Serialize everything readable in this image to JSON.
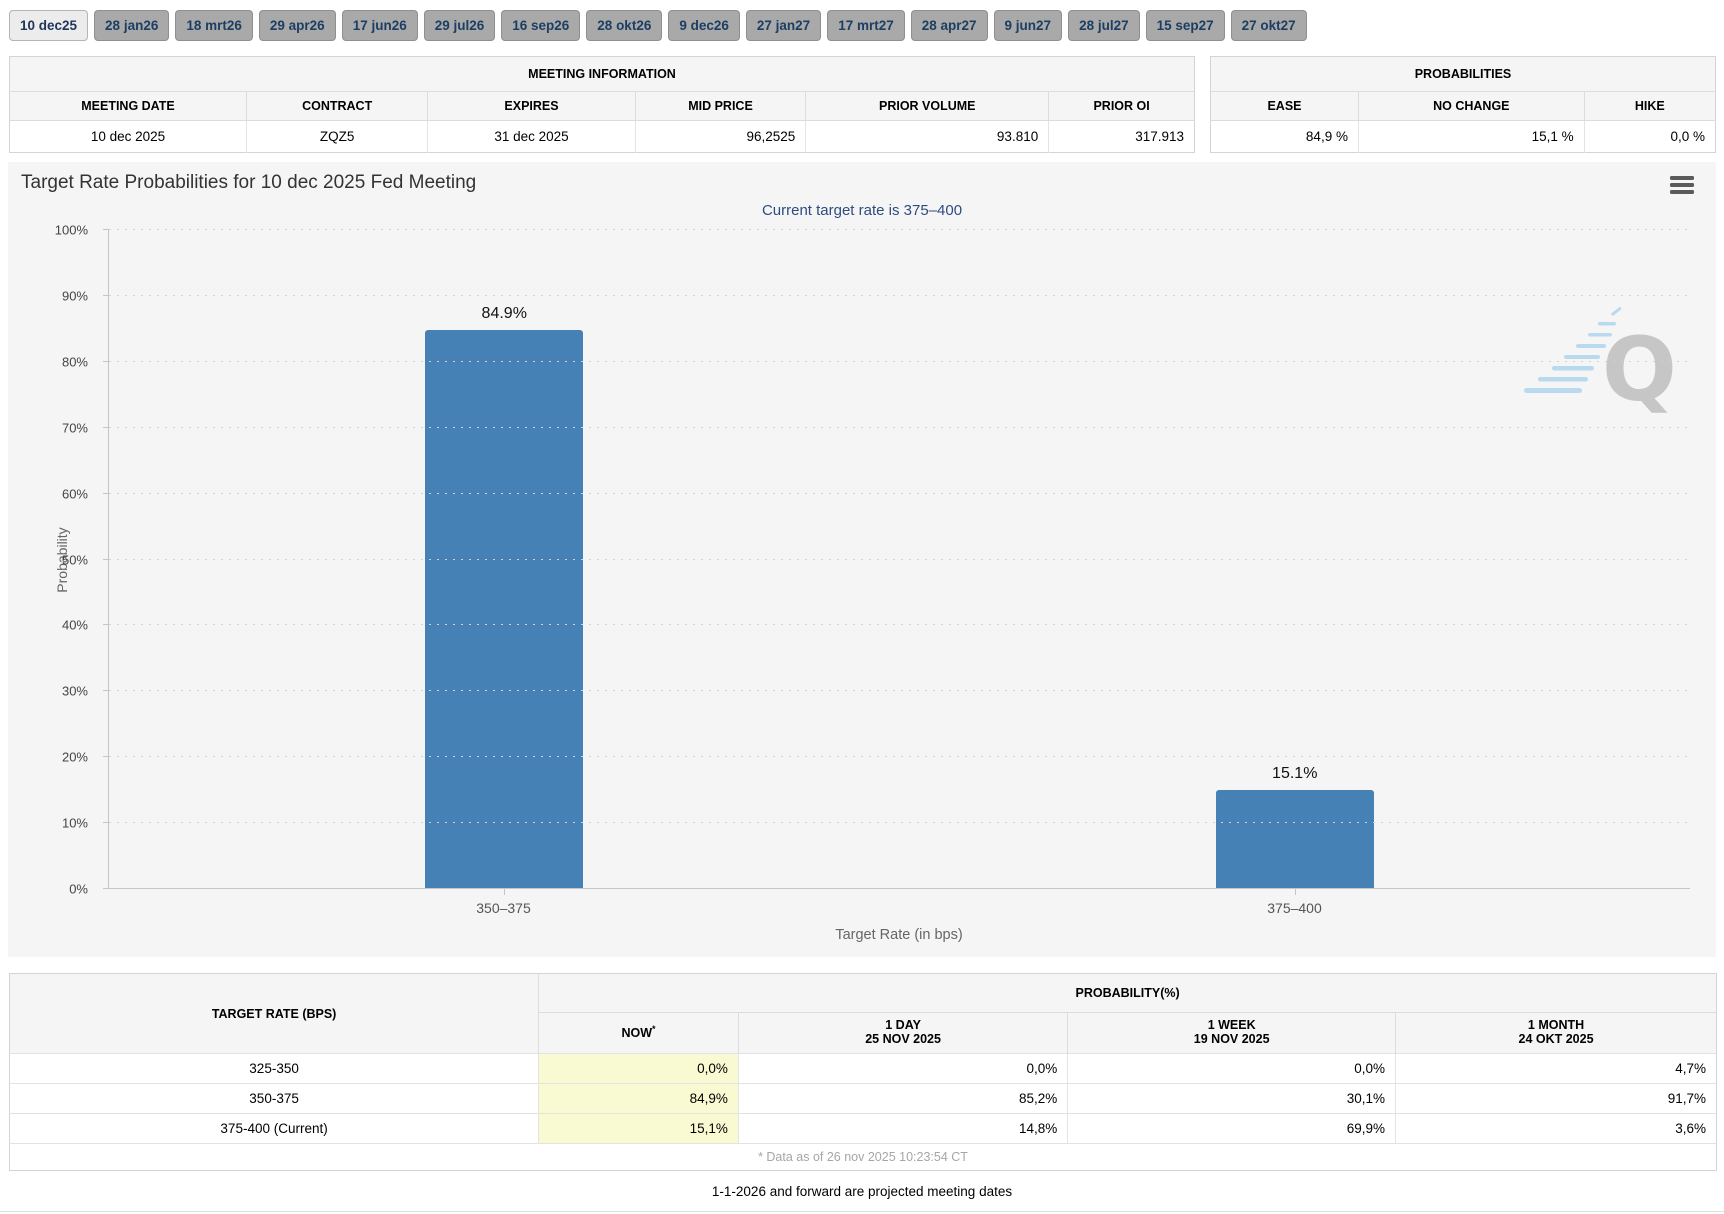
{
  "tabs": {
    "items": [
      {
        "label": "10 dec25",
        "selected": true
      },
      {
        "label": "28 jan26",
        "selected": false
      },
      {
        "label": "18 mrt26",
        "selected": false
      },
      {
        "label": "29 apr26",
        "selected": false
      },
      {
        "label": "17 jun26",
        "selected": false
      },
      {
        "label": "29 jul26",
        "selected": false
      },
      {
        "label": "16 sep26",
        "selected": false
      },
      {
        "label": "28 okt26",
        "selected": false
      },
      {
        "label": "9 dec26",
        "selected": false
      },
      {
        "label": "27 jan27",
        "selected": false
      },
      {
        "label": "17 mrt27",
        "selected": false
      },
      {
        "label": "28 apr27",
        "selected": false
      },
      {
        "label": "9 jun27",
        "selected": false
      },
      {
        "label": "28 jul27",
        "selected": false
      },
      {
        "label": "15 sep27",
        "selected": false
      },
      {
        "label": "27 okt27",
        "selected": false
      }
    ]
  },
  "meeting_info": {
    "title": "MEETING INFORMATION",
    "columns": [
      "MEETING DATE",
      "CONTRACT",
      "EXPIRES",
      "MID PRICE",
      "PRIOR VOLUME",
      "PRIOR OI"
    ],
    "row": [
      "10 dec 2025",
      "ZQZ5",
      "31 dec 2025",
      "96,2525",
      "93.810",
      "317.913"
    ]
  },
  "probabilities": {
    "title": "PROBABILITIES",
    "columns": [
      "EASE",
      "NO CHANGE",
      "HIKE"
    ],
    "row": [
      "84,9 %",
      "15,1 %",
      "0,0 %"
    ]
  },
  "chart": {
    "title": "Target Rate Probabilities for 10 dec 2025 Fed Meeting",
    "subtitle": "Current target rate is 375–400",
    "ylabel": "Probability",
    "xlabel": "Target Rate (in bps)",
    "watermark_letter": "Q"
  },
  "chart_data": {
    "type": "bar",
    "categories": [
      "350–375",
      "375–400"
    ],
    "values": [
      84.9,
      15.1
    ],
    "labels": [
      "84.9%",
      "15.1%"
    ],
    "title": "Target Rate Probabilities for 10 dec 2025 Fed Meeting",
    "subtitle": "Current target rate is 375–400",
    "xlabel": "Target Rate (in bps)",
    "ylabel": "Probability",
    "ylim": [
      0,
      100
    ],
    "ytick_step": 10,
    "ytick_suffix": "%",
    "grid": "dotted horizontal",
    "legend": "none",
    "bar_color": "#4581b4"
  },
  "history_table": {
    "target_rate_header": "TARGET RATE (BPS)",
    "probability_header": "PROBABILITY(%)",
    "now_header": "NOW",
    "now_asterisk": "*",
    "col_headers": [
      {
        "line1": "1 DAY",
        "line2": "25 NOV 2025"
      },
      {
        "line1": "1 WEEK",
        "line2": "19 NOV 2025"
      },
      {
        "line1": "1 MONTH",
        "line2": "24 OKT 2025"
      }
    ],
    "rows": [
      [
        "325-350",
        "0,0%",
        "0,0%",
        "0,0%",
        "4,7%"
      ],
      [
        "350-375",
        "84,9%",
        "85,2%",
        "30,1%",
        "91,7%"
      ],
      [
        "375-400 (Current)",
        "15,1%",
        "14,8%",
        "69,9%",
        "3,6%"
      ]
    ],
    "footnote": "* Data as of 26 nov 2025 10:23:54 CT",
    "now_highlight_color": "#fafad2"
  },
  "footer": {
    "note": "1-1-2026 and forward are projected meeting dates"
  }
}
